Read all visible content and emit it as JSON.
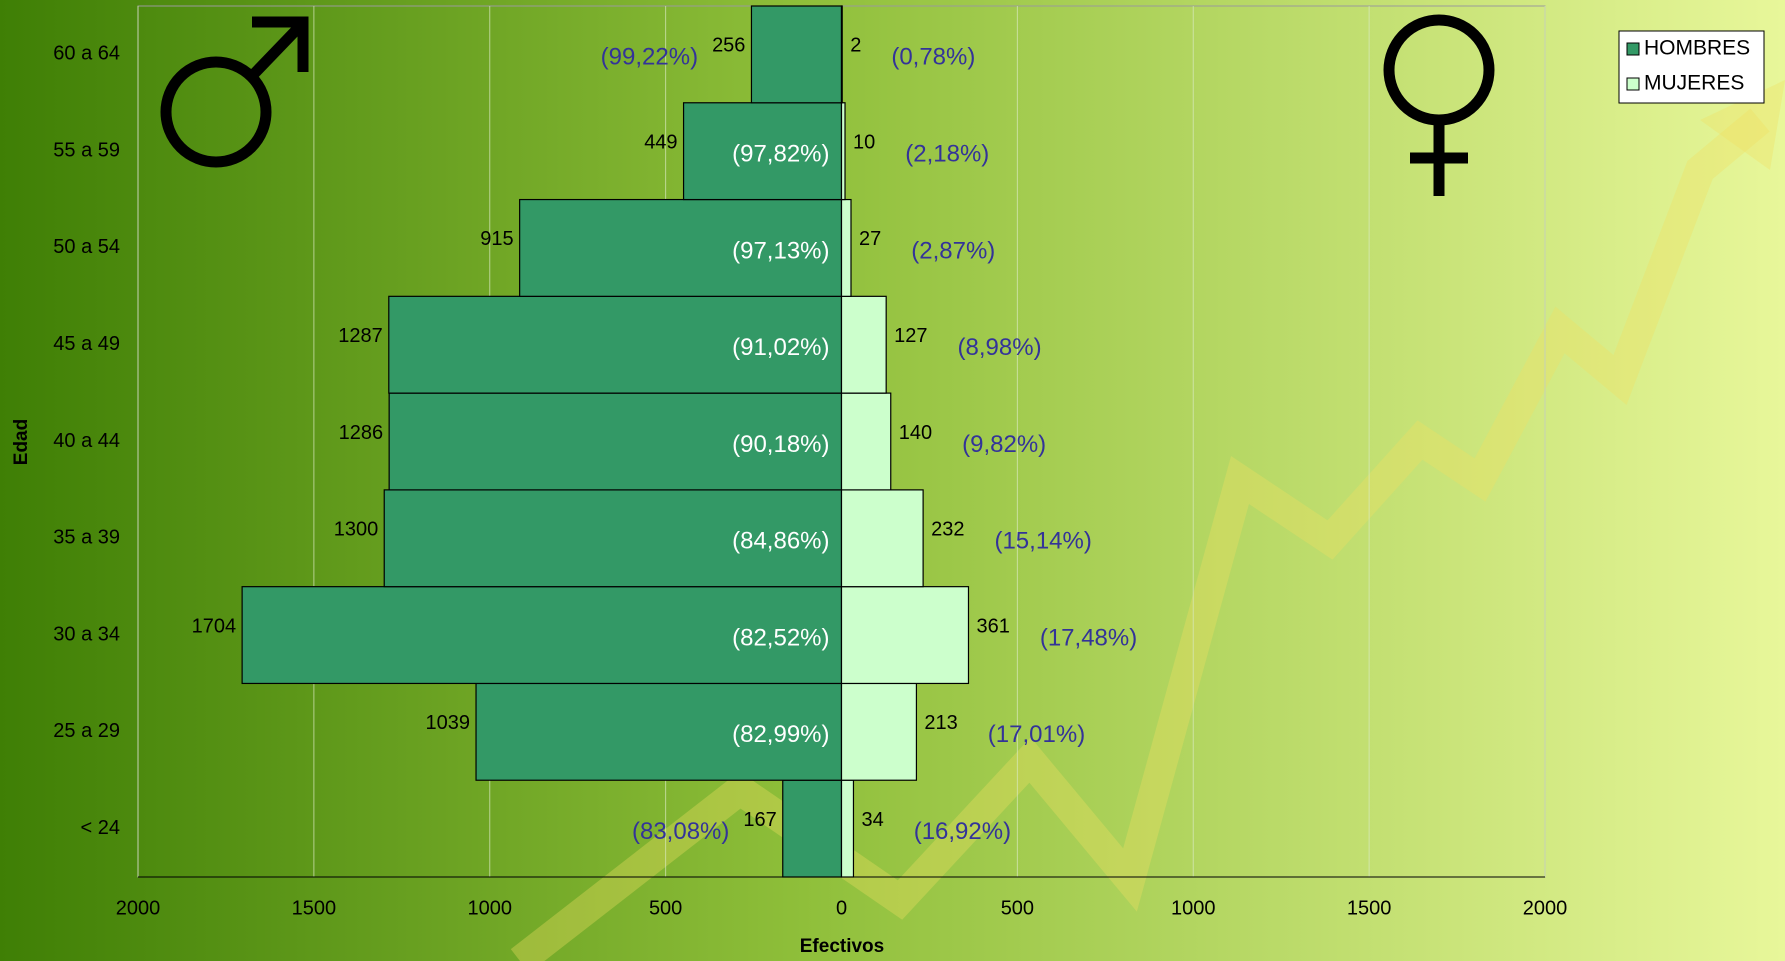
{
  "chart_data": {
    "type": "bar",
    "orientation": "horizontal",
    "layout": "pyramid",
    "x_label": "Efectivos",
    "y_label": "Edad",
    "categories": [
      "< 24",
      "25 a 29",
      "30 a 34",
      "35 a 39",
      "40 a 44",
      "45 a 49",
      "50 a 54",
      "55 a 59",
      "60 a 64"
    ],
    "series": [
      {
        "name": "HOMBRES",
        "color": "#339966",
        "side": "left",
        "values": [
          167,
          1039,
          1704,
          1300,
          1286,
          1287,
          915,
          449,
          256
        ],
        "share_labels": [
          "(83,08%)",
          "(82,99%)",
          "(82,52%)",
          "(84,86%)",
          "(90,18%)",
          "(91,02%)",
          "(97,13%)",
          "(97,82%)",
          "(99,22%)"
        ]
      },
      {
        "name": "MUJERES",
        "color": "#ccffcc",
        "side": "right",
        "values": [
          34,
          213,
          361,
          232,
          140,
          127,
          27,
          10,
          2
        ],
        "share_labels": [
          "(16,92%)",
          "(17,01%)",
          "(17,48%)",
          "(15,14%)",
          "(9,82%)",
          "(8,98%)",
          "(2,87%)",
          "(2,18%)",
          "(0,78%)"
        ]
      }
    ],
    "xlim": [
      -2000,
      2000
    ],
    "xticks": [
      {
        "value": -2000,
        "label": "2000"
      },
      {
        "value": -1500,
        "label": "1500"
      },
      {
        "value": -1000,
        "label": "1000"
      },
      {
        "value": -500,
        "label": "500"
      },
      0,
      500,
      1000,
      1500,
      2000
    ],
    "grid": true,
    "legend": "top-right"
  }
}
